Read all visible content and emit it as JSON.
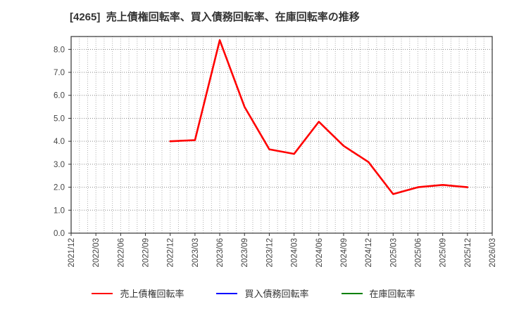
{
  "title": "[4265]  売上債権回転率、買入債務回転率、在庫回転率の推移",
  "chart_data": {
    "type": "line",
    "title": "[4265]  売上債権回転率、買入債務回転率、在庫回転率の推移",
    "xlabel": "",
    "ylabel": "",
    "x_categories": [
      "2021/12",
      "2022/03",
      "2022/06",
      "2022/09",
      "2022/12",
      "2023/03",
      "2023/06",
      "2023/09",
      "2023/12",
      "2024/03",
      "2024/06",
      "2024/09",
      "2024/12",
      "2025/03",
      "2025/06",
      "2025/09",
      "2025/12",
      "2026/03"
    ],
    "y_tick_labels": [
      "0.0",
      "1.0",
      "2.0",
      "3.0",
      "4.0",
      "5.0",
      "6.0",
      "7.0",
      "8.0"
    ],
    "ylim": [
      0,
      8.56
    ],
    "grid": true,
    "grid_style": "dotted",
    "minor_vertical_divisions_per_quarter": 3,
    "legend_position": "bottom-center",
    "series": [
      {
        "name": "売上債権回転率",
        "color": "#ff0000",
        "points": [
          [
            "2022/12",
            4.0
          ],
          [
            "2023/03",
            4.05
          ],
          [
            "2023/06",
            8.4
          ],
          [
            "2023/09",
            5.5
          ],
          [
            "2023/12",
            3.65
          ],
          [
            "2024/03",
            3.45
          ],
          [
            "2024/06",
            4.85
          ],
          [
            "2024/09",
            3.8
          ],
          [
            "2024/12",
            3.1
          ],
          [
            "2025/03",
            1.7
          ],
          [
            "2025/06",
            2.0
          ],
          [
            "2025/09",
            2.1
          ],
          [
            "2025/12",
            2.0
          ]
        ]
      },
      {
        "name": "買入債務回転率",
        "color": "#0000ff",
        "points": []
      },
      {
        "name": "在庫回転率",
        "color": "#008000",
        "points": []
      }
    ]
  },
  "colors": {
    "spine": "#333333",
    "tick_label": "#444444",
    "h_grid": "#8a8a8a",
    "v_grid": "#b0b0b0"
  }
}
